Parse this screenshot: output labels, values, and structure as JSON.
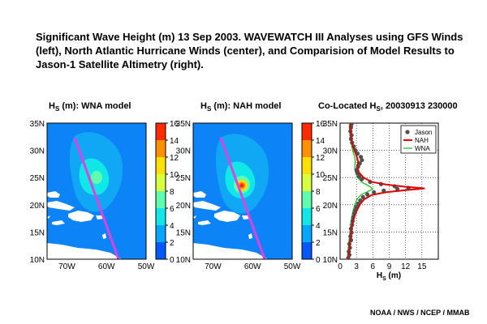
{
  "figure": {
    "title": "Significant Wave Height (m) 13 Sep 2003. WAVEWATCH III Analyses using GFS Winds (left), North Atlantic Hurricane Winds (center), and Comparision of Model Results to Jason-1 Satellite Altimetry (right).",
    "credit": "NOAA / NWS / NCEP / MMAB"
  },
  "panels": {
    "wna": {
      "title_main": "H",
      "title_sub": "S",
      "title_rest": " (m): WNA model"
    },
    "nah": {
      "title_main": "H",
      "title_sub": "S",
      "title_rest": " (m): NAH model"
    },
    "colo": {
      "title_prefix": "Co-Located H",
      "title_sub": "S",
      "title_suffix": ", 20030913 230000"
    }
  },
  "map_axes": {
    "lat_ticks": [
      "35N",
      "30N",
      "25N",
      "20N",
      "15N",
      "10N"
    ],
    "lon_ticks": [
      "70W",
      "60W",
      "50W"
    ]
  },
  "colorbar": {
    "ticks": [
      "16",
      "14",
      "12",
      "10",
      "8",
      "6",
      "4",
      "2",
      "0"
    ],
    "colors": [
      "#ff2a00",
      "#ff9000",
      "#ffe000",
      "#d8ff40",
      "#60ffb0",
      "#10e8e8",
      "#00a8ff",
      "#0058ff"
    ]
  },
  "colors": {
    "ocean": "#0c84f8",
    "land": "#ffffff",
    "track": "#e040e0",
    "nah_line": "#e00000",
    "wna_line": "#10c010",
    "jason_dot": "#505050"
  },
  "chart_data": {
    "type": "line",
    "title": "Co-Located HS, 20030913 230000",
    "xlabel": "HS (m)",
    "ylabel": "",
    "xlim": [
      0,
      18
    ],
    "ylim": [
      10,
      35
    ],
    "x_ticks": [
      "0",
      "3",
      "6",
      "9",
      "12",
      "15"
    ],
    "y_ticks": [
      "35N",
      "30N",
      "25N",
      "20N",
      "15N",
      "10N"
    ],
    "legend_position": "top-right",
    "series": [
      {
        "name": "Jason",
        "marker": "dot",
        "points": [
          [
            1.5,
            10.2
          ],
          [
            1.7,
            10.8
          ],
          [
            1.6,
            11.4
          ],
          [
            1.8,
            12.1
          ],
          [
            1.7,
            12.8
          ],
          [
            2.0,
            13.5
          ],
          [
            1.9,
            14.2
          ],
          [
            2.1,
            14.9
          ],
          [
            2.0,
            15.6
          ],
          [
            2.2,
            16.3
          ],
          [
            2.3,
            17.0
          ],
          [
            2.4,
            17.7
          ],
          [
            2.6,
            18.4
          ],
          [
            2.8,
            19.0
          ],
          [
            3.0,
            19.6
          ],
          [
            3.3,
            20.2
          ],
          [
            3.7,
            20.8
          ],
          [
            4.2,
            21.4
          ],
          [
            5.0,
            21.9
          ],
          [
            6.2,
            22.3
          ],
          [
            8.0,
            22.6
          ],
          [
            10.5,
            22.9
          ],
          [
            12.5,
            23.1
          ],
          [
            10.0,
            23.4
          ],
          [
            7.5,
            23.8
          ],
          [
            5.5,
            24.2
          ],
          [
            4.0,
            24.7
          ],
          [
            3.5,
            25.2
          ],
          [
            3.2,
            25.8
          ],
          [
            3.0,
            26.4
          ],
          [
            3.3,
            27.0
          ],
          [
            3.6,
            27.6
          ],
          [
            4.0,
            28.2
          ],
          [
            3.8,
            28.8
          ],
          [
            3.2,
            29.4
          ],
          [
            2.8,
            30.0
          ],
          [
            2.5,
            30.7
          ],
          [
            2.2,
            31.4
          ],
          [
            2.0,
            32.1
          ],
          [
            2.1,
            32.8
          ],
          [
            1.9,
            33.5
          ],
          [
            2.0,
            34.2
          ],
          [
            2.1,
            34.8
          ]
        ]
      },
      {
        "name": "NAH",
        "marker": "line",
        "points": [
          [
            1.5,
            10.0
          ],
          [
            1.6,
            11.0
          ],
          [
            1.7,
            12.0
          ],
          [
            1.8,
            13.0
          ],
          [
            2.0,
            14.0
          ],
          [
            2.1,
            15.0
          ],
          [
            2.2,
            16.0
          ],
          [
            2.4,
            17.0
          ],
          [
            2.7,
            18.0
          ],
          [
            3.1,
            19.0
          ],
          [
            3.6,
            20.0
          ],
          [
            4.4,
            21.0
          ],
          [
            5.8,
            21.8
          ],
          [
            8.5,
            22.3
          ],
          [
            12.0,
            22.7
          ],
          [
            15.5,
            23.0
          ],
          [
            12.0,
            23.3
          ],
          [
            8.5,
            23.7
          ],
          [
            5.8,
            24.2
          ],
          [
            4.3,
            25.0
          ],
          [
            3.4,
            26.0
          ],
          [
            3.2,
            27.0
          ],
          [
            3.3,
            28.0
          ],
          [
            3.0,
            29.0
          ],
          [
            2.6,
            30.0
          ],
          [
            2.3,
            31.0
          ],
          [
            2.1,
            32.0
          ],
          [
            2.0,
            33.0
          ],
          [
            1.9,
            34.0
          ],
          [
            1.9,
            35.0
          ]
        ]
      },
      {
        "name": "WNA",
        "marker": "line",
        "points": [
          [
            1.3,
            10.0
          ],
          [
            1.4,
            11.0
          ],
          [
            1.5,
            12.0
          ],
          [
            1.6,
            13.0
          ],
          [
            1.7,
            14.0
          ],
          [
            1.8,
            15.0
          ],
          [
            1.9,
            16.0
          ],
          [
            2.0,
            17.0
          ],
          [
            2.2,
            18.0
          ],
          [
            2.4,
            19.0
          ],
          [
            2.7,
            20.0
          ],
          [
            3.1,
            21.0
          ],
          [
            3.8,
            21.8
          ],
          [
            5.0,
            22.4
          ],
          [
            6.0,
            22.9
          ],
          [
            5.2,
            23.5
          ],
          [
            4.0,
            24.1
          ],
          [
            3.2,
            25.0
          ],
          [
            2.8,
            26.0
          ],
          [
            2.7,
            27.0
          ],
          [
            2.8,
            28.0
          ],
          [
            2.6,
            29.0
          ],
          [
            2.3,
            30.0
          ],
          [
            2.1,
            31.0
          ],
          [
            1.9,
            32.0
          ],
          [
            1.8,
            33.0
          ],
          [
            1.7,
            34.0
          ],
          [
            1.7,
            35.0
          ]
        ]
      }
    ]
  }
}
